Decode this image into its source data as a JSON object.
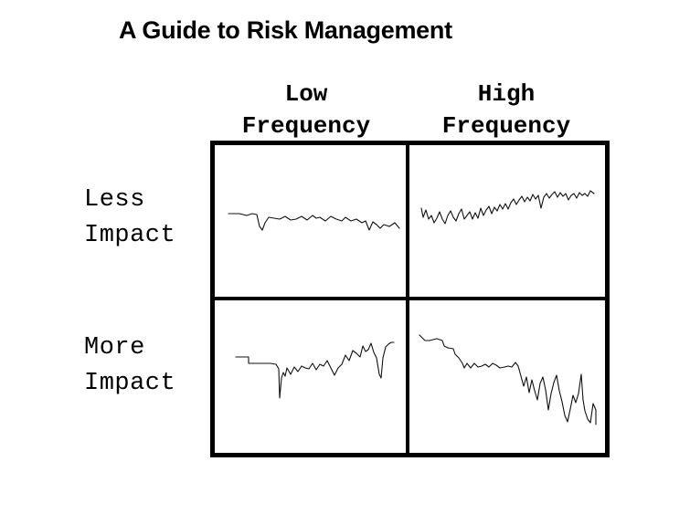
{
  "title": "A Guide to Risk Management",
  "columns": [
    {
      "line1": "Low",
      "line2": "Frequency"
    },
    {
      "line1": "High",
      "line2": "Frequency"
    }
  ],
  "rows": [
    {
      "line1": "Less",
      "line2": "Impact"
    },
    {
      "line1": "More",
      "line2": "Impact"
    }
  ]
}
